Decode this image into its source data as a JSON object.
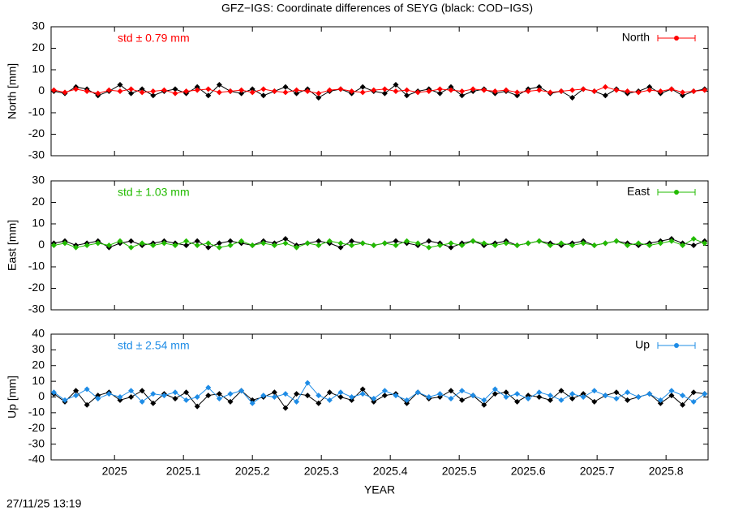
{
  "title": "GFZ−IGS: Coordinate differences of SEYG (black: COD−IGS)",
  "footer": "27/11/25 13:19",
  "chart_data": [
    {
      "type": "line",
      "ylabel": "North [mm]",
      "annotation": "std ± 0.79 mm",
      "legend": "upper right",
      "xlim": [
        2024.908,
        2025.861
      ],
      "xticks": [
        2025,
        2025.1,
        2025.2,
        2025.3,
        2025.4,
        2025.5,
        2025.6,
        2025.7,
        2025.8
      ],
      "ylim": [
        -30,
        30
      ],
      "yticks": [
        -30,
        -20,
        -10,
        0,
        10,
        20,
        30
      ],
      "x": [
        2024.912,
        2024.928,
        2024.944,
        2024.96,
        2024.976,
        2024.992,
        2025.008,
        2025.024,
        2025.04,
        2025.056,
        2025.072,
        2025.088,
        2025.104,
        2025.12,
        2025.136,
        2025.152,
        2025.168,
        2025.184,
        2025.2,
        2025.216,
        2025.232,
        2025.248,
        2025.264,
        2025.28,
        2025.296,
        2025.312,
        2025.328,
        2025.344,
        2025.36,
        2025.376,
        2025.392,
        2025.408,
        2025.424,
        2025.44,
        2025.456,
        2025.472,
        2025.488,
        2025.504,
        2025.52,
        2025.536,
        2025.552,
        2025.568,
        2025.584,
        2025.6,
        2025.616,
        2025.632,
        2025.648,
        2025.664,
        2025.68,
        2025.696,
        2025.712,
        2025.728,
        2025.744,
        2025.76,
        2025.776,
        2025.792,
        2025.808,
        2025.824,
        2025.84,
        2025.856
      ],
      "series": [
        {
          "color": "#000000",
          "values": [
            0,
            -1,
            2,
            1,
            -2,
            0,
            3,
            -1,
            1,
            -2,
            0,
            1,
            -1,
            2,
            -2,
            3,
            0,
            -1,
            1,
            -2,
            0,
            2,
            -1,
            1,
            -3,
            0,
            1,
            -1,
            2,
            0,
            -1,
            3,
            -2,
            0,
            1,
            -1,
            2,
            -2,
            0,
            1,
            -1,
            0,
            -2,
            1,
            2,
            -1,
            0,
            -3,
            1,
            0,
            -2,
            1,
            -1,
            0,
            2,
            -1,
            1,
            -2,
            0,
            1
          ]
        },
        {
          "name": "North",
          "color": "#ff0000",
          "values": [
            0.5,
            -0.5,
            1,
            0,
            -1,
            0.5,
            0,
            1,
            -0.5,
            0,
            0.5,
            -1,
            0,
            0.5,
            1,
            -0.5,
            0,
            0.5,
            -0.5,
            1,
            0,
            -0.5,
            0.5,
            0,
            -1,
            0.5,
            1,
            0,
            -0.5,
            0.5,
            1,
            0,
            0.5,
            -0.5,
            0,
            1,
            0.5,
            0,
            1,
            0.5,
            0,
            0.5,
            -0.5,
            0,
            0.5,
            -0.5,
            0,
            0.5,
            1,
            0,
            2,
            0.5,
            0,
            -0.5,
            0.5,
            0,
            1,
            -0.5,
            0,
            0.5
          ]
        }
      ]
    },
    {
      "type": "line",
      "ylabel": "East [mm]",
      "annotation": "std ± 1.03 mm",
      "legend": "upper right",
      "xlim": [
        2024.908,
        2025.861
      ],
      "xticks": [
        2025,
        2025.1,
        2025.2,
        2025.3,
        2025.4,
        2025.5,
        2025.6,
        2025.7,
        2025.8
      ],
      "ylim": [
        -30,
        30
      ],
      "yticks": [
        -30,
        -20,
        -10,
        0,
        10,
        20,
        30
      ],
      "x": [
        2024.912,
        2024.928,
        2024.944,
        2024.96,
        2024.976,
        2024.992,
        2025.008,
        2025.024,
        2025.04,
        2025.056,
        2025.072,
        2025.088,
        2025.104,
        2025.12,
        2025.136,
        2025.152,
        2025.168,
        2025.184,
        2025.2,
        2025.216,
        2025.232,
        2025.248,
        2025.264,
        2025.28,
        2025.296,
        2025.312,
        2025.328,
        2025.344,
        2025.36,
        2025.376,
        2025.392,
        2025.408,
        2025.424,
        2025.44,
        2025.456,
        2025.472,
        2025.488,
        2025.504,
        2025.52,
        2025.536,
        2025.552,
        2025.568,
        2025.584,
        2025.6,
        2025.616,
        2025.632,
        2025.648,
        2025.664,
        2025.68,
        2025.696,
        2025.712,
        2025.728,
        2025.744,
        2025.76,
        2025.776,
        2025.792,
        2025.808,
        2025.824,
        2025.84,
        2025.856
      ],
      "series": [
        {
          "color": "#000000",
          "values": [
            1,
            2,
            0,
            1,
            2,
            -1,
            1,
            2,
            0,
            1,
            2,
            1,
            0,
            2,
            -1,
            1,
            2,
            1,
            0,
            2,
            1,
            3,
            0,
            1,
            2,
            1,
            -1,
            2,
            1,
            0,
            1,
            2,
            1,
            0,
            2,
            1,
            -1,
            1,
            2,
            0,
            1,
            2,
            0,
            1,
            2,
            1,
            0,
            1,
            2,
            0,
            1,
            2,
            1,
            0,
            1,
            2,
            3,
            1,
            0,
            2
          ]
        },
        {
          "name": "East",
          "color": "#22bb00",
          "values": [
            0,
            1,
            -1,
            0,
            1,
            0,
            2,
            -1,
            1,
            0,
            1,
            0,
            2,
            0,
            1,
            -1,
            0,
            2,
            0,
            1,
            0,
            1,
            -1,
            1,
            0,
            2,
            1,
            0,
            1,
            0,
            1,
            0,
            2,
            1,
            -1,
            0,
            1,
            0,
            2,
            1,
            0,
            1,
            0,
            1,
            2,
            0,
            1,
            0,
            1,
            0,
            1,
            2,
            0,
            1,
            0,
            1,
            2,
            0,
            3,
            1
          ]
        }
      ]
    },
    {
      "type": "line",
      "ylabel": "Up [mm]",
      "xlabel": "YEAR",
      "annotation": "std ± 2.54 mm",
      "legend": "upper right",
      "xlim": [
        2024.908,
        2025.861
      ],
      "xticks": [
        2025,
        2025.1,
        2025.2,
        2025.3,
        2025.4,
        2025.5,
        2025.6,
        2025.7,
        2025.8
      ],
      "ylim": [
        -40,
        40
      ],
      "yticks": [
        -40,
        -30,
        -20,
        -10,
        0,
        10,
        20,
        30,
        40
      ],
      "x": [
        2024.912,
        2024.928,
        2024.944,
        2024.96,
        2024.976,
        2024.992,
        2025.008,
        2025.024,
        2025.04,
        2025.056,
        2025.072,
        2025.088,
        2025.104,
        2025.12,
        2025.136,
        2025.152,
        2025.168,
        2025.184,
        2025.2,
        2025.216,
        2025.232,
        2025.248,
        2025.264,
        2025.28,
        2025.296,
        2025.312,
        2025.328,
        2025.344,
        2025.36,
        2025.376,
        2025.392,
        2025.408,
        2025.424,
        2025.44,
        2025.456,
        2025.472,
        2025.488,
        2025.504,
        2025.52,
        2025.536,
        2025.552,
        2025.568,
        2025.584,
        2025.6,
        2025.616,
        2025.632,
        2025.648,
        2025.664,
        2025.68,
        2025.696,
        2025.712,
        2025.728,
        2025.744,
        2025.76,
        2025.776,
        2025.792,
        2025.808,
        2025.824,
        2025.84,
        2025.856
      ],
      "series": [
        {
          "color": "#000000",
          "values": [
            2,
            -3,
            4,
            -5,
            1,
            3,
            -2,
            0,
            4,
            -4,
            2,
            -1,
            3,
            -6,
            1,
            2,
            -3,
            4,
            -2,
            0,
            3,
            -7,
            2,
            1,
            -4,
            3,
            0,
            -2,
            5,
            -3,
            1,
            2,
            -4,
            3,
            -1,
            0,
            4,
            -2,
            1,
            -5,
            2,
            3,
            -3,
            1,
            0,
            -2,
            4,
            -1,
            2,
            -3,
            1,
            3,
            -2,
            0,
            2,
            -4,
            1,
            -5,
            3,
            2
          ]
        },
        {
          "name": "Up",
          "color": "#1e8ce6",
          "values": [
            3,
            -2,
            1,
            5,
            -1,
            2,
            0,
            4,
            -3,
            2,
            1,
            3,
            -2,
            0,
            6,
            -1,
            2,
            4,
            -4,
            1,
            0,
            2,
            -3,
            9,
            1,
            -2,
            3,
            0,
            2,
            -1,
            4,
            1,
            -2,
            3,
            0,
            2,
            -1,
            4,
            1,
            -2,
            5,
            0,
            2,
            -1,
            3,
            1,
            -2,
            2,
            0,
            4,
            1,
            -1,
            3,
            0,
            2,
            -2,
            4,
            1,
            -3,
            2
          ]
        }
      ]
    }
  ]
}
